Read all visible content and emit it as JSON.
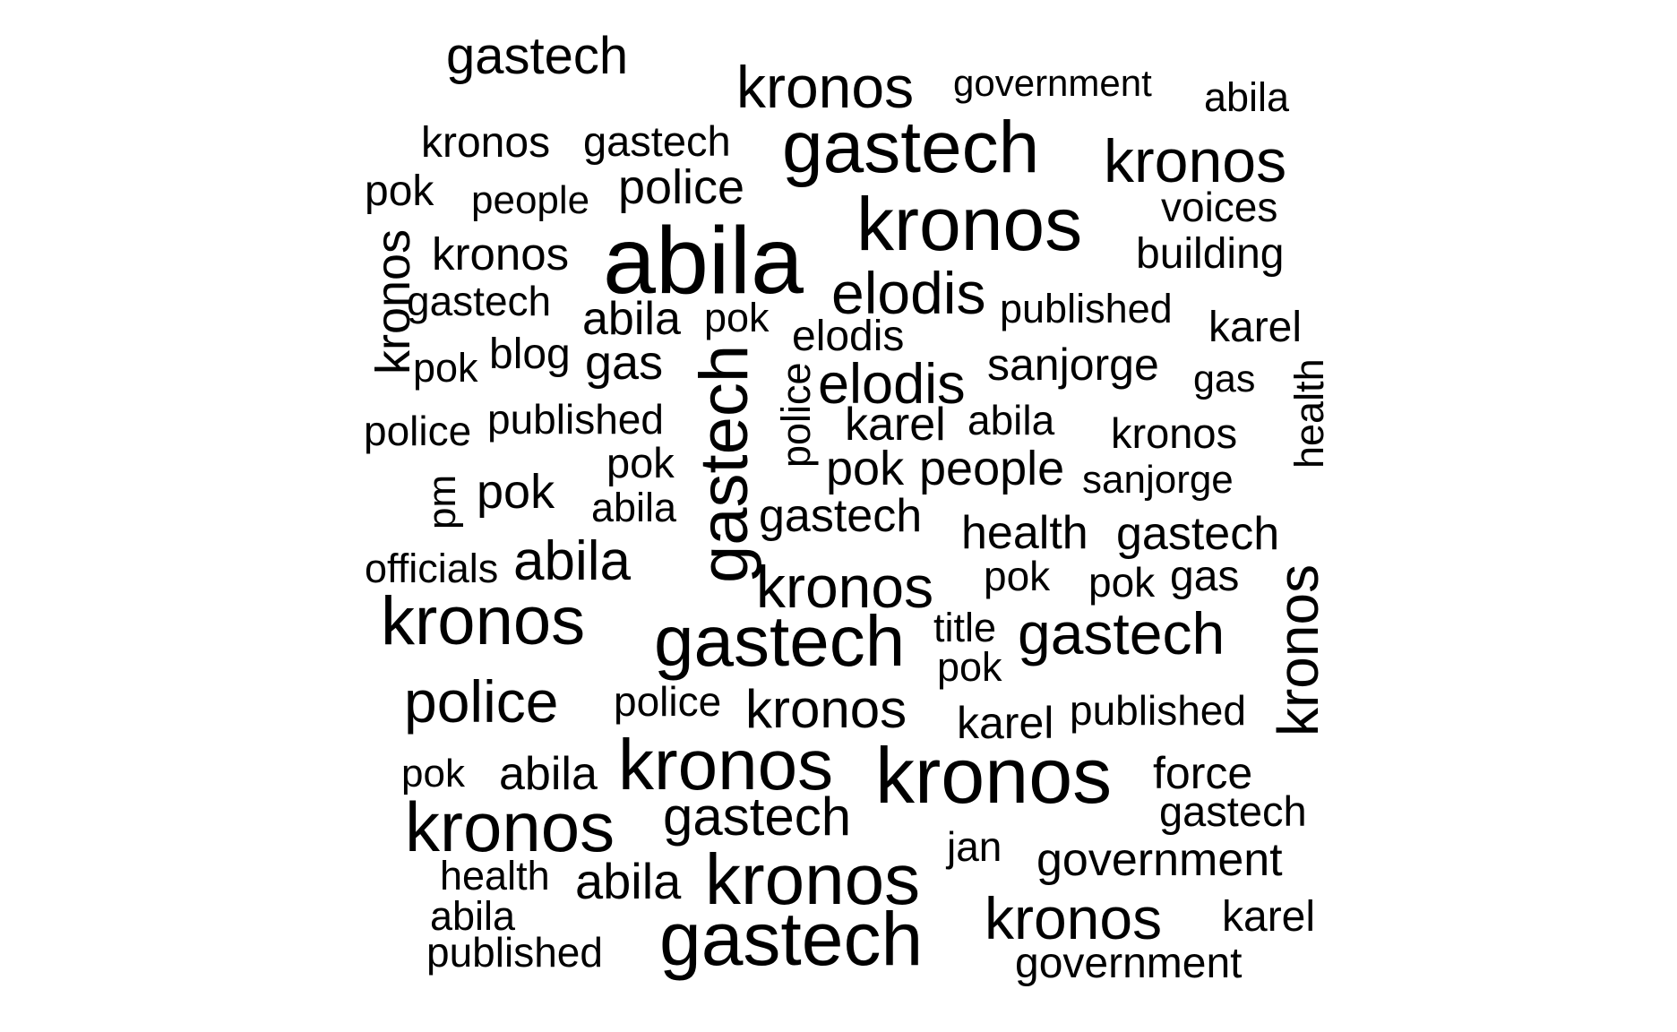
{
  "word_cloud": {
    "text_color": "#000000",
    "background_color": "#ffffff",
    "words": [
      {
        "text": "gastech",
        "orientation": "horizontal"
      },
      {
        "text": "kronos",
        "orientation": "horizontal"
      },
      {
        "text": "government",
        "orientation": "horizontal"
      },
      {
        "text": "abila",
        "orientation": "horizontal"
      },
      {
        "text": "kronos",
        "orientation": "horizontal"
      },
      {
        "text": "gastech",
        "orientation": "horizontal"
      },
      {
        "text": "gastech",
        "orientation": "horizontal"
      },
      {
        "text": "kronos",
        "orientation": "horizontal"
      },
      {
        "text": "pok",
        "orientation": "horizontal"
      },
      {
        "text": "people",
        "orientation": "horizontal"
      },
      {
        "text": "police",
        "orientation": "horizontal"
      },
      {
        "text": "kronos",
        "orientation": "horizontal"
      },
      {
        "text": "voices",
        "orientation": "horizontal"
      },
      {
        "text": "kronos",
        "orientation": "horizontal"
      },
      {
        "text": "abila",
        "orientation": "horizontal"
      },
      {
        "text": "building",
        "orientation": "horizontal"
      },
      {
        "text": "kronos",
        "orientation": "vertical"
      },
      {
        "text": "gastech",
        "orientation": "horizontal"
      },
      {
        "text": "elodis",
        "orientation": "horizontal"
      },
      {
        "text": "published",
        "orientation": "horizontal"
      },
      {
        "text": "abila",
        "orientation": "horizontal"
      },
      {
        "text": "pok",
        "orientation": "horizontal"
      },
      {
        "text": "karel",
        "orientation": "horizontal"
      },
      {
        "text": "elodis",
        "orientation": "horizontal"
      },
      {
        "text": "pok",
        "orientation": "horizontal"
      },
      {
        "text": "blog",
        "orientation": "horizontal"
      },
      {
        "text": "gas",
        "orientation": "horizontal"
      },
      {
        "text": "sanjorge",
        "orientation": "horizontal"
      },
      {
        "text": "elodis",
        "orientation": "horizontal"
      },
      {
        "text": "gas",
        "orientation": "horizontal"
      },
      {
        "text": "gastech",
        "orientation": "vertical"
      },
      {
        "text": "police",
        "orientation": "vertical"
      },
      {
        "text": "health",
        "orientation": "vertical"
      },
      {
        "text": "police",
        "orientation": "horizontal"
      },
      {
        "text": "published",
        "orientation": "horizontal"
      },
      {
        "text": "karel",
        "orientation": "horizontal"
      },
      {
        "text": "abila",
        "orientation": "horizontal"
      },
      {
        "text": "kronos",
        "orientation": "horizontal"
      },
      {
        "text": "pok",
        "orientation": "horizontal"
      },
      {
        "text": "pok",
        "orientation": "horizontal"
      },
      {
        "text": "people",
        "orientation": "horizontal"
      },
      {
        "text": "sanjorge",
        "orientation": "horizontal"
      },
      {
        "text": "pm",
        "orientation": "vertical"
      },
      {
        "text": "pok",
        "orientation": "horizontal"
      },
      {
        "text": "abila",
        "orientation": "horizontal"
      },
      {
        "text": "gastech",
        "orientation": "horizontal"
      },
      {
        "text": "health",
        "orientation": "horizontal"
      },
      {
        "text": "gastech",
        "orientation": "horizontal"
      },
      {
        "text": "officials",
        "orientation": "horizontal"
      },
      {
        "text": "abila",
        "orientation": "horizontal"
      },
      {
        "text": "kronos",
        "orientation": "horizontal"
      },
      {
        "text": "pok",
        "orientation": "horizontal"
      },
      {
        "text": "pok",
        "orientation": "horizontal"
      },
      {
        "text": "gas",
        "orientation": "horizontal"
      },
      {
        "text": "kronos",
        "orientation": "vertical"
      },
      {
        "text": "kronos",
        "orientation": "horizontal"
      },
      {
        "text": "gastech",
        "orientation": "horizontal"
      },
      {
        "text": "title",
        "orientation": "horizontal"
      },
      {
        "text": "gastech",
        "orientation": "horizontal"
      },
      {
        "text": "pok",
        "orientation": "horizontal"
      },
      {
        "text": "police",
        "orientation": "horizontal"
      },
      {
        "text": "police",
        "orientation": "horizontal"
      },
      {
        "text": "kronos",
        "orientation": "horizontal"
      },
      {
        "text": "karel",
        "orientation": "horizontal"
      },
      {
        "text": "published",
        "orientation": "horizontal"
      },
      {
        "text": "pok",
        "orientation": "horizontal"
      },
      {
        "text": "abila",
        "orientation": "horizontal"
      },
      {
        "text": "kronos",
        "orientation": "horizontal"
      },
      {
        "text": "kronos",
        "orientation": "horizontal"
      },
      {
        "text": "force",
        "orientation": "horizontal"
      },
      {
        "text": "kronos",
        "orientation": "horizontal"
      },
      {
        "text": "gastech",
        "orientation": "horizontal"
      },
      {
        "text": "gastech",
        "orientation": "horizontal"
      },
      {
        "text": "jan",
        "orientation": "horizontal"
      },
      {
        "text": "government",
        "orientation": "horizontal"
      },
      {
        "text": "health",
        "orientation": "horizontal"
      },
      {
        "text": "abila",
        "orientation": "horizontal"
      },
      {
        "text": "kronos",
        "orientation": "horizontal"
      },
      {
        "text": "abila",
        "orientation": "horizontal"
      },
      {
        "text": "kronos",
        "orientation": "horizontal"
      },
      {
        "text": "karel",
        "orientation": "horizontal"
      },
      {
        "text": "published",
        "orientation": "horizontal"
      },
      {
        "text": "gastech",
        "orientation": "horizontal"
      },
      {
        "text": "government",
        "orientation": "horizontal"
      }
    ]
  }
}
